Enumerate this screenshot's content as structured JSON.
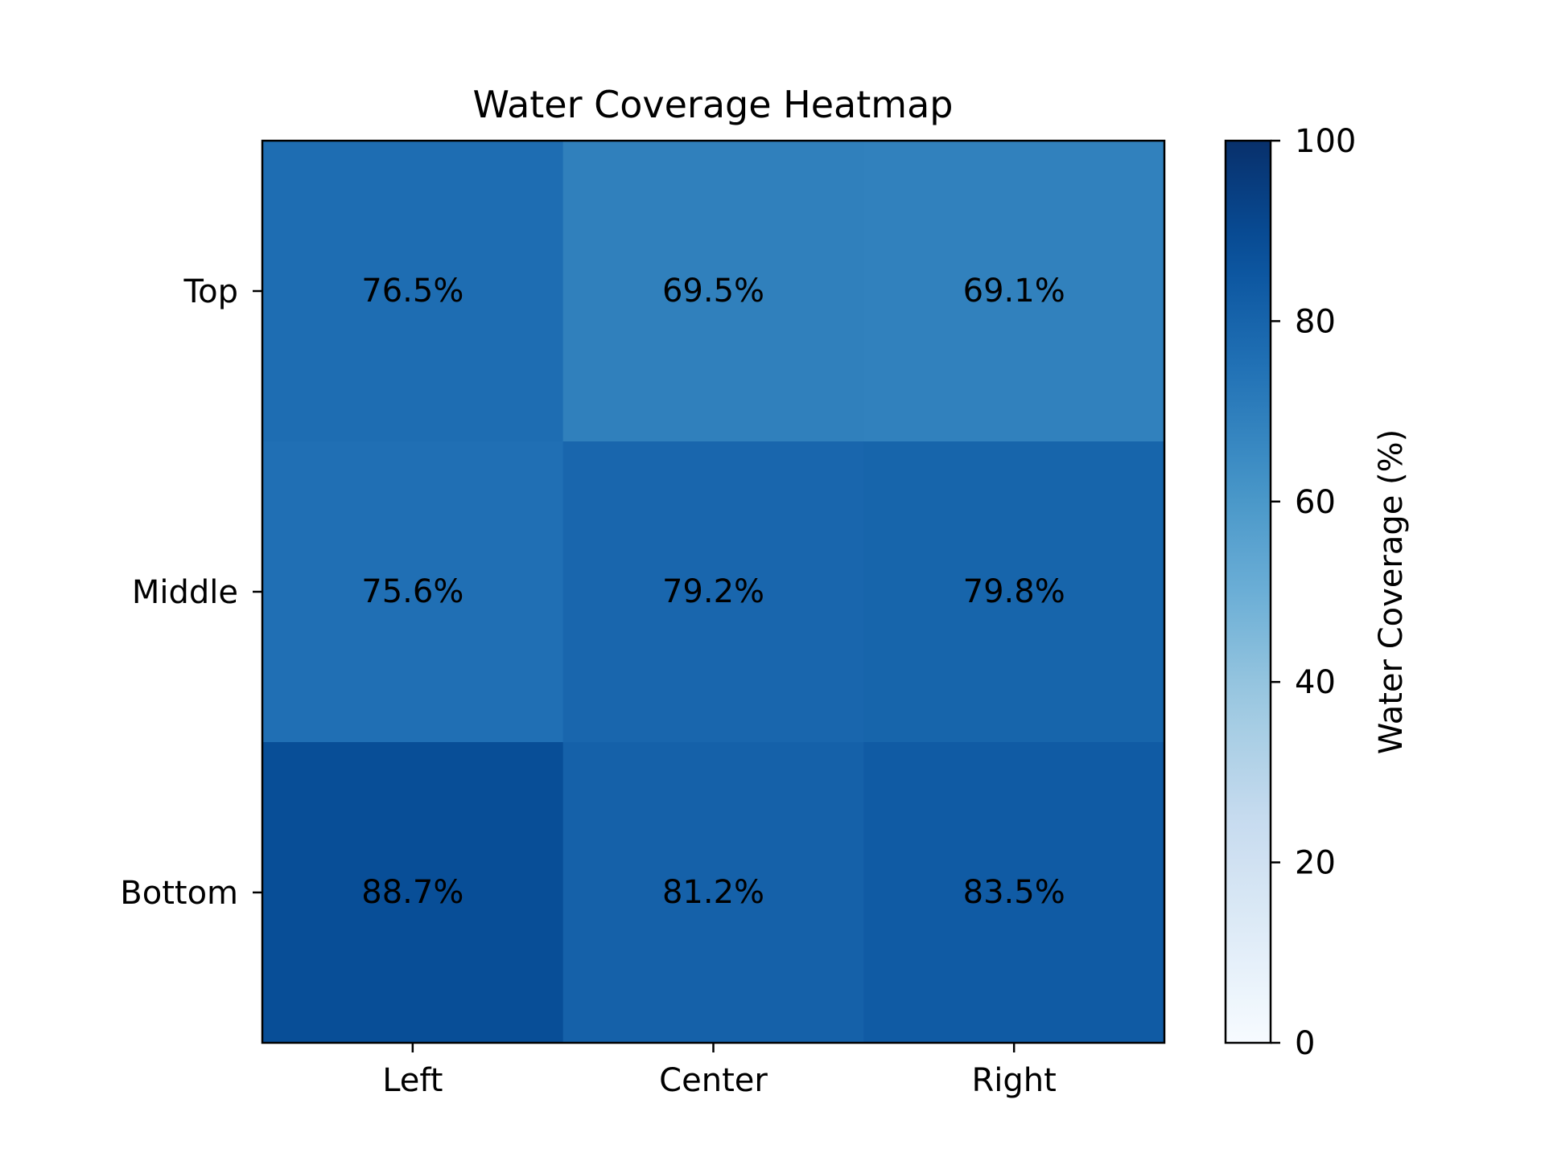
{
  "chart_data": {
    "type": "heatmap",
    "title": "Water Coverage Heatmap",
    "x_categories": [
      "Left",
      "Center",
      "Right"
    ],
    "y_categories": [
      "Top",
      "Middle",
      "Bottom"
    ],
    "values": [
      [
        76.5,
        69.5,
        69.1
      ],
      [
        75.6,
        79.2,
        79.8
      ],
      [
        88.7,
        81.2,
        83.5
      ]
    ],
    "cell_labels": [
      [
        "76.5%",
        "69.5%",
        "69.1%"
      ],
      [
        "75.6%",
        "79.2%",
        "79.8%"
      ],
      [
        "88.7%",
        "81.2%",
        "83.5%"
      ]
    ],
    "colorbar": {
      "label": "Water Coverage (%)",
      "range": [
        0,
        100
      ],
      "ticks": [
        0,
        20,
        40,
        60,
        80,
        100
      ],
      "tick_labels": [
        "0",
        "20",
        "40",
        "60",
        "80",
        "100"
      ],
      "colormap": "Blues"
    },
    "grid": false
  }
}
